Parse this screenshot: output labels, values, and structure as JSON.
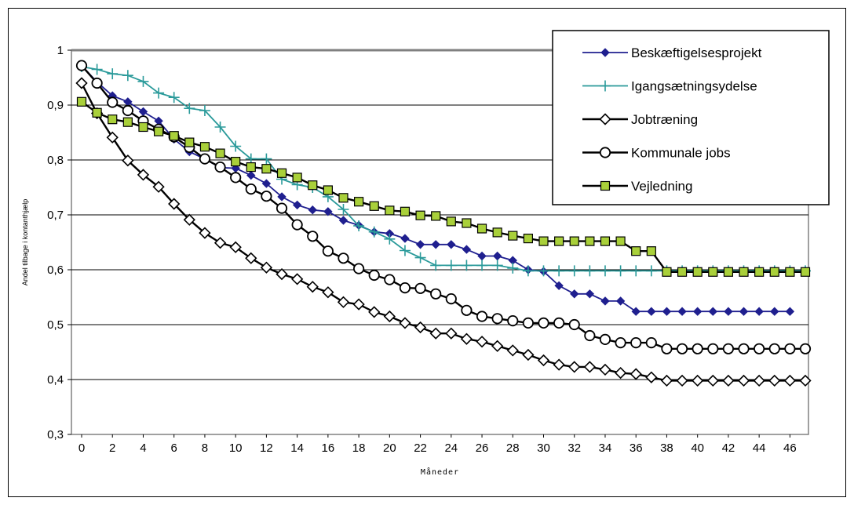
{
  "chart_data": {
    "type": "line",
    "title": "",
    "xlabel": "Måneder",
    "ylabel": "Andel tilbage i kontanthjælp",
    "xlim": [
      0,
      47
    ],
    "ylim": [
      0.3,
      1.0
    ],
    "x_ticks": [
      "0",
      "2",
      "4",
      "6",
      "8",
      "10",
      "12",
      "14",
      "16",
      "18",
      "20",
      "22",
      "24",
      "26",
      "28",
      "30",
      "32",
      "34",
      "36",
      "38",
      "40",
      "42",
      "44",
      "46"
    ],
    "y_ticks": [
      "0,3",
      "0,4",
      "0,5",
      "0,6",
      "0,7",
      "0,8",
      "0,9",
      "1"
    ],
    "grid": "horizontal",
    "legend_position": "top-right",
    "series": [
      {
        "name": "Beskæftigelsesprojekt",
        "color": "#1f1f8f",
        "marker": "diamond-filled",
        "x": [
          0,
          1,
          2,
          3,
          4,
          5,
          6,
          7,
          8,
          9,
          10,
          11,
          12,
          13,
          14,
          15,
          16,
          17,
          18,
          19,
          20,
          21,
          22,
          23,
          24,
          25,
          26,
          27,
          28,
          29,
          30,
          31,
          32,
          33,
          34,
          35,
          36,
          37,
          38,
          39,
          40,
          41,
          42,
          43,
          44,
          45,
          46
        ],
        "y": [
          0.972,
          0.942,
          0.917,
          0.906,
          0.888,
          0.871,
          0.838,
          0.815,
          0.802,
          0.786,
          0.785,
          0.772,
          0.757,
          0.733,
          0.718,
          0.709,
          0.706,
          0.69,
          0.681,
          0.669,
          0.666,
          0.657,
          0.646,
          0.646,
          0.646,
          0.637,
          0.625,
          0.625,
          0.617,
          0.6,
          0.597,
          0.571,
          0.556,
          0.556,
          0.543,
          0.543,
          0.524,
          0.524,
          0.524,
          0.524,
          0.524,
          0.524,
          0.524,
          0.524,
          0.524,
          0.524,
          0.524
        ]
      },
      {
        "name": "Igangsætningsydelse",
        "color": "#2a9a9a",
        "marker": "plus",
        "x": [
          0,
          1,
          2,
          3,
          4,
          5,
          6,
          7,
          8,
          9,
          10,
          11,
          12,
          13,
          14,
          15,
          16,
          17,
          18,
          19,
          20,
          21,
          22,
          23,
          24,
          25,
          26,
          27,
          28,
          29,
          30,
          31,
          32,
          33,
          34,
          35,
          36,
          37,
          38,
          39,
          40,
          41,
          42,
          43,
          44,
          45,
          46,
          47
        ],
        "y": [
          0.97,
          0.965,
          0.957,
          0.954,
          0.943,
          0.922,
          0.914,
          0.894,
          0.89,
          0.86,
          0.825,
          0.802,
          0.802,
          0.765,
          0.755,
          0.75,
          0.733,
          0.71,
          0.68,
          0.669,
          0.656,
          0.635,
          0.622,
          0.608,
          0.608,
          0.608,
          0.608,
          0.608,
          0.603,
          0.598,
          0.598,
          0.598,
          0.598,
          0.598,
          0.598,
          0.598,
          0.598,
          0.598,
          0.598,
          0.598,
          0.598,
          0.598,
          0.598,
          0.598,
          0.598,
          0.598,
          0.598,
          0.598
        ]
      },
      {
        "name": "Jobtræning",
        "color": "#000000",
        "marker": "diamond-open",
        "x": [
          0,
          1,
          2,
          3,
          4,
          5,
          6,
          7,
          8,
          9,
          10,
          11,
          12,
          13,
          14,
          15,
          16,
          17,
          18,
          19,
          20,
          21,
          22,
          23,
          24,
          25,
          26,
          27,
          28,
          29,
          30,
          31,
          32,
          33,
          34,
          35,
          36,
          37,
          38,
          39,
          40,
          41,
          42,
          43,
          44,
          45,
          46,
          47
        ],
        "y": [
          0.94,
          0.885,
          0.841,
          0.799,
          0.773,
          0.751,
          0.72,
          0.691,
          0.667,
          0.649,
          0.641,
          0.621,
          0.604,
          0.592,
          0.583,
          0.569,
          0.559,
          0.541,
          0.537,
          0.523,
          0.515,
          0.503,
          0.495,
          0.484,
          0.484,
          0.474,
          0.469,
          0.461,
          0.453,
          0.445,
          0.435,
          0.427,
          0.423,
          0.423,
          0.418,
          0.412,
          0.41,
          0.404,
          0.398,
          0.398,
          0.398,
          0.398,
          0.398,
          0.398,
          0.398,
          0.398,
          0.398,
          0.398
        ]
      },
      {
        "name": "Kommunale jobs",
        "color": "#000000",
        "marker": "circle-open",
        "x": [
          0,
          1,
          2,
          3,
          4,
          5,
          6,
          7,
          8,
          9,
          10,
          11,
          12,
          13,
          14,
          15,
          16,
          17,
          18,
          19,
          20,
          21,
          22,
          23,
          24,
          25,
          26,
          27,
          28,
          29,
          30,
          31,
          32,
          33,
          34,
          35,
          36,
          37,
          38,
          39,
          40,
          41,
          42,
          43,
          44,
          45,
          46,
          47
        ],
        "y": [
          0.972,
          0.94,
          0.905,
          0.89,
          0.871,
          0.856,
          0.842,
          0.823,
          0.802,
          0.787,
          0.768,
          0.747,
          0.734,
          0.712,
          0.682,
          0.661,
          0.634,
          0.621,
          0.602,
          0.59,
          0.582,
          0.567,
          0.566,
          0.556,
          0.547,
          0.526,
          0.515,
          0.511,
          0.507,
          0.503,
          0.503,
          0.503,
          0.5,
          0.48,
          0.473,
          0.467,
          0.467,
          0.467,
          0.456,
          0.456,
          0.456,
          0.456,
          0.456,
          0.456,
          0.456,
          0.456,
          0.456,
          0.456
        ]
      },
      {
        "name": "Vejledning",
        "color": "#000000",
        "marker_fill": "#a9d03a",
        "marker": "square-filled",
        "x": [
          0,
          1,
          2,
          3,
          4,
          5,
          6,
          7,
          8,
          9,
          10,
          11,
          12,
          13,
          14,
          15,
          16,
          17,
          18,
          19,
          20,
          21,
          22,
          23,
          24,
          25,
          26,
          27,
          28,
          29,
          30,
          31,
          32,
          33,
          34,
          35,
          36,
          37,
          38,
          39,
          40,
          41,
          42,
          43,
          44,
          45,
          46,
          47
        ],
        "y": [
          0.906,
          0.886,
          0.874,
          0.869,
          0.86,
          0.852,
          0.844,
          0.832,
          0.824,
          0.812,
          0.797,
          0.787,
          0.784,
          0.776,
          0.768,
          0.754,
          0.745,
          0.731,
          0.724,
          0.716,
          0.708,
          0.706,
          0.699,
          0.698,
          0.688,
          0.685,
          0.675,
          0.668,
          0.662,
          0.657,
          0.652,
          0.652,
          0.652,
          0.652,
          0.652,
          0.652,
          0.634,
          0.634,
          0.596,
          0.596,
          0.596,
          0.596,
          0.596,
          0.596,
          0.596,
          0.596,
          0.596,
          0.596
        ]
      }
    ]
  }
}
